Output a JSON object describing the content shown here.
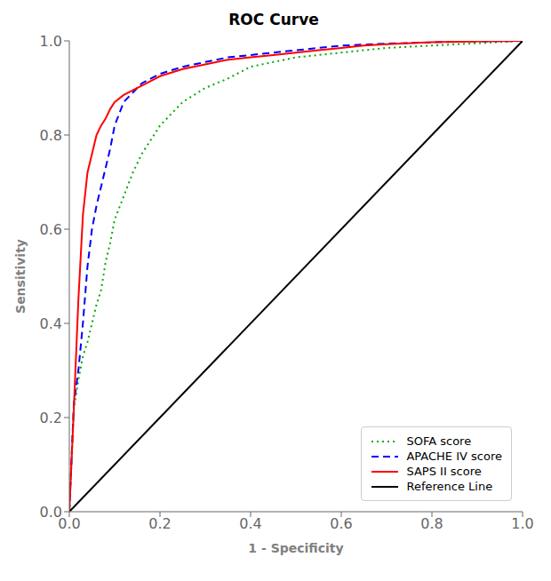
{
  "chart_data": {
    "type": "line",
    "title": "ROC Curve",
    "xlabel": "1 - Specificity",
    "ylabel": "Sensitivity",
    "xlim": [
      0.0,
      1.0
    ],
    "ylim": [
      0.0,
      1.0
    ],
    "xticks": [
      {
        "value": 0.0,
        "label": "0.0"
      },
      0.2,
      0.4,
      0.6,
      0.8,
      {
        "value": 1.0,
        "label": "1.0"
      }
    ],
    "yticks": [
      {
        "value": 0.0,
        "label": "0.0"
      },
      0.2,
      0.4,
      0.6,
      0.8,
      {
        "value": 1.0,
        "label": "1.0"
      }
    ],
    "grid": false,
    "legend": "lower right",
    "series": [
      {
        "name": "SOFA score",
        "color": "#00aa00",
        "line_style": "dotted",
        "x": [
          0.0,
          0.01,
          0.02,
          0.03,
          0.04,
          0.05,
          0.06,
          0.07,
          0.08,
          0.09,
          0.1,
          0.12,
          0.14,
          0.16,
          0.18,
          0.2,
          0.25,
          0.3,
          0.35,
          0.4,
          0.45,
          0.5,
          0.55,
          0.6,
          0.65,
          0.7,
          0.8,
          0.9,
          1.0
        ],
        "values": [
          0.0,
          0.22,
          0.28,
          0.33,
          0.36,
          0.4,
          0.44,
          0.47,
          0.53,
          0.57,
          0.62,
          0.67,
          0.72,
          0.76,
          0.79,
          0.82,
          0.87,
          0.9,
          0.92,
          0.945,
          0.955,
          0.965,
          0.97,
          0.975,
          0.98,
          0.985,
          0.99,
          0.995,
          1.0
        ]
      },
      {
        "name": "APACHE IV score",
        "color": "#0000ff",
        "line_style": "dashed",
        "x": [
          0.0,
          0.01,
          0.02,
          0.03,
          0.04,
          0.05,
          0.06,
          0.07,
          0.08,
          0.09,
          0.1,
          0.12,
          0.14,
          0.16,
          0.18,
          0.2,
          0.25,
          0.3,
          0.35,
          0.4,
          0.45,
          0.5,
          0.55,
          0.6,
          0.65,
          0.7,
          0.8,
          0.9,
          1.0
        ],
        "values": [
          0.0,
          0.23,
          0.3,
          0.4,
          0.52,
          0.6,
          0.65,
          0.69,
          0.73,
          0.77,
          0.82,
          0.87,
          0.89,
          0.91,
          0.92,
          0.93,
          0.945,
          0.955,
          0.965,
          0.97,
          0.975,
          0.98,
          0.985,
          0.99,
          0.992,
          0.994,
          0.997,
          0.999,
          1.0
        ]
      },
      {
        "name": "SAPS II score",
        "color": "#ff0000",
        "line_style": "solid",
        "x": [
          0.0,
          0.01,
          0.02,
          0.03,
          0.04,
          0.05,
          0.06,
          0.07,
          0.08,
          0.09,
          0.1,
          0.12,
          0.14,
          0.16,
          0.18,
          0.2,
          0.25,
          0.3,
          0.35,
          0.4,
          0.45,
          0.5,
          0.55,
          0.6,
          0.65,
          0.7,
          0.8,
          0.9,
          1.0
        ],
        "values": [
          0.0,
          0.22,
          0.45,
          0.63,
          0.72,
          0.76,
          0.8,
          0.82,
          0.835,
          0.855,
          0.87,
          0.885,
          0.895,
          0.905,
          0.915,
          0.925,
          0.94,
          0.95,
          0.96,
          0.965,
          0.97,
          0.975,
          0.98,
          0.985,
          0.99,
          0.993,
          0.997,
          0.999,
          1.0
        ]
      },
      {
        "name": "Reference Line",
        "color": "#000000",
        "line_style": "solid",
        "x": [
          0.0,
          1.0
        ],
        "values": [
          0.0,
          1.0
        ]
      }
    ]
  }
}
